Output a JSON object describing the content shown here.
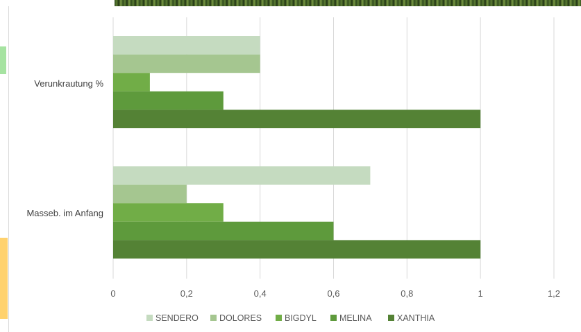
{
  "chart_data": {
    "type": "bar",
    "orientation": "horizontal",
    "categories": [
      "Verunkrautung %",
      "Masseb. im Anfang"
    ],
    "series": [
      {
        "name": "SENDERO",
        "color": "#c5dbc0",
        "values": [
          0.4,
          0.7
        ]
      },
      {
        "name": "DOLORES",
        "color": "#a5c690",
        "values": [
          0.4,
          0.2
        ]
      },
      {
        "name": "BIGDYL",
        "color": "#71ad47",
        "values": [
          0.1,
          0.3
        ]
      },
      {
        "name": "MELINA",
        "color": "#5e9a3c",
        "values": [
          0.3,
          0.6
        ]
      },
      {
        "name": "XANTHIA",
        "color": "#548235",
        "values": [
          1,
          1
        ]
      }
    ],
    "xlim": [
      0,
      1.2
    ],
    "xticks": [
      "0",
      "0,2",
      "0,4",
      "0,6",
      "0,8",
      "1",
      "1,2"
    ],
    "xlabel": "",
    "ylabel": "",
    "title": "",
    "grid": "vertical",
    "legend": "bottom"
  }
}
